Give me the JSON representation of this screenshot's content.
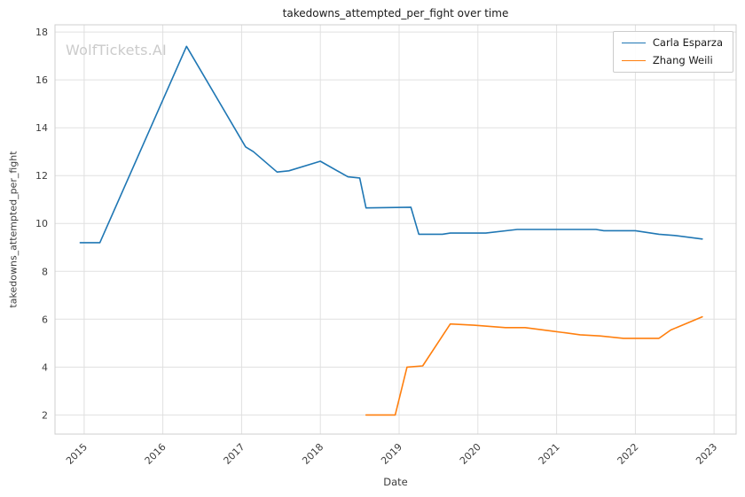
{
  "chart_data": {
    "type": "line",
    "title": "takedowns_attempted_per_fight over time",
    "xlabel": "Date",
    "ylabel": "takedowns_attempted_per_fight",
    "watermark": "WolfTickets.AI",
    "grid": true,
    "legend_position": "upper right",
    "xlim": [
      2014.63,
      2023.28
    ],
    "ylim": [
      1.2,
      18.3
    ],
    "x_ticks": [
      2015,
      2016,
      2017,
      2018,
      2019,
      2020,
      2021,
      2022,
      2023
    ],
    "y_ticks": [
      2,
      4,
      6,
      8,
      10,
      12,
      14,
      16,
      18
    ],
    "series": [
      {
        "name": "Carla Esparza",
        "color": "#1f77b4",
        "points": [
          [
            2014.95,
            9.2
          ],
          [
            2015.2,
            9.2
          ],
          [
            2016.3,
            17.4
          ],
          [
            2017.05,
            13.2
          ],
          [
            2017.15,
            13.0
          ],
          [
            2017.45,
            12.15
          ],
          [
            2017.6,
            12.2
          ],
          [
            2018.0,
            12.6
          ],
          [
            2018.35,
            11.95
          ],
          [
            2018.5,
            11.9
          ],
          [
            2018.58,
            10.65
          ],
          [
            2019.15,
            10.68
          ],
          [
            2019.25,
            9.55
          ],
          [
            2019.55,
            9.55
          ],
          [
            2019.65,
            9.6
          ],
          [
            2020.1,
            9.6
          ],
          [
            2020.5,
            9.75
          ],
          [
            2021.5,
            9.75
          ],
          [
            2021.6,
            9.7
          ],
          [
            2022.0,
            9.7
          ],
          [
            2022.3,
            9.55
          ],
          [
            2022.5,
            9.5
          ],
          [
            2022.85,
            9.35
          ]
        ]
      },
      {
        "name": "Zhang Weili",
        "color": "#ff7f0e",
        "points": [
          [
            2018.58,
            2.0
          ],
          [
            2018.95,
            2.0
          ],
          [
            2019.1,
            4.0
          ],
          [
            2019.3,
            4.05
          ],
          [
            2019.65,
            5.8
          ],
          [
            2019.95,
            5.75
          ],
          [
            2020.35,
            5.65
          ],
          [
            2020.6,
            5.65
          ],
          [
            2020.95,
            5.5
          ],
          [
            2021.3,
            5.35
          ],
          [
            2021.55,
            5.3
          ],
          [
            2021.85,
            5.2
          ],
          [
            2022.3,
            5.2
          ],
          [
            2022.45,
            5.55
          ],
          [
            2022.85,
            6.1
          ]
        ]
      }
    ]
  }
}
